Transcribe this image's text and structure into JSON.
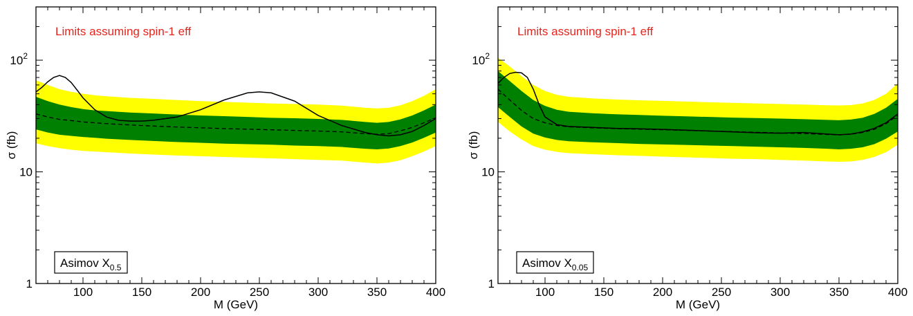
{
  "colors": {
    "band_2sigma": "#ffff00",
    "band_1sigma": "#008000",
    "annotation": "#e8231c",
    "lines": "#000000"
  },
  "chart_data": [
    {
      "type": "area",
      "annotation": "Limits assuming spin-1 eff",
      "legend_box": {
        "main": "Asimov X",
        "subscript": "0.5"
      },
      "xlabel": "M (GeV)",
      "ylabel": "σ (fb)",
      "xlim": [
        60,
        400
      ],
      "ylim": [
        1,
        300
      ],
      "yscale": "log",
      "x_ticks": [
        100,
        150,
        200,
        250,
        300,
        350,
        400
      ],
      "y_ticks": [
        {
          "value": 1,
          "label": "1"
        },
        {
          "value": 10,
          "label": "10"
        },
        {
          "value": 100,
          "label": "10",
          "sup": "2"
        }
      ],
      "x": [
        60,
        70,
        80,
        90,
        100,
        110,
        120,
        140,
        160,
        180,
        200,
        220,
        240,
        260,
        280,
        300,
        320,
        340,
        350,
        360,
        370,
        380,
        390,
        400
      ],
      "series": [
        {
          "role": "band_2sigma_upper",
          "values": [
            66,
            60,
            55,
            52,
            50,
            48.5,
            47.5,
            46,
            45,
            44,
            43,
            42.3,
            41.6,
            41,
            40.5,
            40,
            39.2,
            37.5,
            37,
            37.5,
            39.5,
            43,
            48,
            55
          ]
        },
        {
          "role": "band_1sigma_upper",
          "values": [
            47,
            43,
            40,
            38,
            36.5,
            35.5,
            35,
            34,
            33.3,
            32.6,
            32,
            31.5,
            31,
            30.5,
            30.2,
            29.8,
            29.2,
            28,
            27.5,
            28,
            29.5,
            32,
            35.5,
            40
          ]
        },
        {
          "role": "expected",
          "values": [
            33,
            31,
            29.5,
            28.8,
            28,
            27.5,
            27,
            26.3,
            25.7,
            25.2,
            24.8,
            24.4,
            24.1,
            23.8,
            23.5,
            23.2,
            22.8,
            22,
            21.7,
            22,
            23.3,
            25,
            27.5,
            30.5
          ]
        },
        {
          "role": "band_1sigma_lower",
          "values": [
            24,
            22.5,
            21.5,
            21,
            20.5,
            20.2,
            19.8,
            19.3,
            18.9,
            18.5,
            18.2,
            17.9,
            17.7,
            17.5,
            17.2,
            17,
            16.7,
            16.1,
            15.9,
            16.2,
            17,
            18.3,
            20.2,
            22.5
          ]
        },
        {
          "role": "band_2sigma_lower",
          "values": [
            18,
            17,
            16.3,
            15.8,
            15.4,
            15.2,
            15,
            14.6,
            14.3,
            14,
            13.8,
            13.6,
            13.4,
            13.2,
            13,
            12.8,
            12.6,
            12.1,
            11.9,
            12.1,
            12.7,
            13.8,
            15.2,
            17
          ]
        },
        {
          "role": "observed",
          "x": [
            60,
            65,
            70,
            75,
            80,
            85,
            90,
            95,
            100,
            110,
            120,
            130,
            140,
            150,
            160,
            180,
            200,
            220,
            240,
            250,
            260,
            280,
            300,
            320,
            340,
            350,
            360,
            370,
            380,
            390,
            400
          ],
          "values": [
            52,
            57,
            64,
            70,
            73,
            70,
            63,
            54,
            46,
            36,
            31,
            29,
            28.5,
            28.5,
            29,
            31,
            36,
            44,
            51,
            52,
            51,
            43,
            32,
            26,
            22.5,
            21.5,
            21,
            21.5,
            23,
            26,
            30
          ]
        }
      ]
    },
    {
      "type": "area",
      "annotation": "Limits assuming spin-1 eff",
      "legend_box": {
        "main": "Asimov X",
        "subscript": "0.05"
      },
      "xlabel": "M (GeV)",
      "ylabel": "σ (fb)",
      "xlim": [
        60,
        400
      ],
      "ylim": [
        1,
        300
      ],
      "yscale": "log",
      "x_ticks": [
        100,
        150,
        200,
        250,
        300,
        350,
        400
      ],
      "y_ticks": [
        {
          "value": 1,
          "label": "1"
        },
        {
          "value": 10,
          "label": "10"
        },
        {
          "value": 100,
          "label": "10",
          "sup": "2"
        }
      ],
      "x": [
        60,
        70,
        80,
        90,
        100,
        110,
        120,
        140,
        160,
        180,
        200,
        220,
        240,
        260,
        280,
        300,
        320,
        340,
        350,
        360,
        370,
        380,
        390,
        400
      ],
      "series": [
        {
          "role": "band_2sigma_upper",
          "values": [
            105,
            88,
            72,
            60,
            53,
            49,
            47,
            45.5,
            44.5,
            43.8,
            43.2,
            42.6,
            42,
            41.5,
            41,
            40.5,
            40,
            39.5,
            39.3,
            39.6,
            41,
            44,
            50,
            62
          ]
        },
        {
          "role": "band_1sigma_upper",
          "values": [
            80,
            65,
            53,
            44,
            39,
            36,
            34.5,
            33.5,
            32.8,
            32.3,
            31.8,
            31.4,
            31,
            30.6,
            30.3,
            30,
            29.6,
            29.2,
            29,
            29.4,
            30.5,
            33,
            37.5,
            45
          ]
        },
        {
          "role": "expected",
          "values": [
            55,
            44,
            35.5,
            30,
            27.5,
            26,
            25.3,
            24.8,
            24.4,
            24.1,
            23.8,
            23.5,
            23.2,
            22.9,
            22.6,
            22.3,
            22,
            21.6,
            21.4,
            21.7,
            22.5,
            24,
            27,
            32
          ]
        },
        {
          "role": "band_1sigma_lower",
          "values": [
            38,
            31,
            25.5,
            22,
            20.3,
            19.3,
            18.8,
            18.4,
            18.1,
            17.8,
            17.6,
            17.4,
            17.2,
            17,
            16.8,
            16.6,
            16.4,
            16.1,
            15.9,
            16.1,
            16.6,
            17.7,
            19.8,
            23
          ]
        },
        {
          "role": "band_2sigma_lower",
          "values": [
            28,
            23,
            19.5,
            17,
            15.8,
            15.1,
            14.7,
            14.4,
            14.1,
            13.9,
            13.7,
            13.5,
            13.3,
            13.1,
            13,
            12.8,
            12.6,
            12.4,
            12.3,
            12.4,
            12.8,
            13.6,
            15,
            17.5
          ]
        },
        {
          "role": "observed",
          "x": [
            60,
            65,
            70,
            75,
            80,
            85,
            90,
            95,
            100,
            110,
            120,
            140,
            160,
            180,
            200,
            220,
            240,
            260,
            280,
            300,
            320,
            340,
            350,
            360,
            370,
            380,
            390,
            400
          ],
          "values": [
            62,
            70,
            76,
            78,
            77,
            70,
            55,
            40,
            31,
            26.5,
            25.5,
            25,
            24.5,
            24.3,
            24,
            23.6,
            23.2,
            22.8,
            22.4,
            22.2,
            22.5,
            21.8,
            21.5,
            21.8,
            22.8,
            24.5,
            27.5,
            33
          ]
        }
      ]
    }
  ]
}
